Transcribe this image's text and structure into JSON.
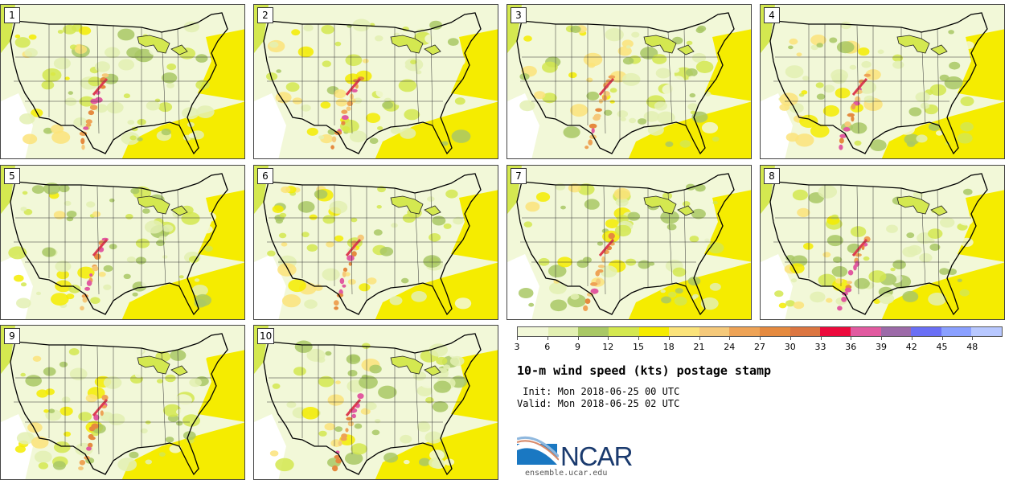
{
  "product": {
    "title": "10-m wind speed (kts) postage stamp",
    "init_line": " Init: Mon 2018-06-25 00 UTC",
    "valid_line": "Valid: Mon 2018-06-25 02 UTC"
  },
  "panels": [
    {
      "label": "1"
    },
    {
      "label": "2"
    },
    {
      "label": "3"
    },
    {
      "label": "4"
    },
    {
      "label": "5"
    },
    {
      "label": "6"
    },
    {
      "label": "7"
    },
    {
      "label": "8"
    },
    {
      "label": "9"
    },
    {
      "label": "10"
    }
  ],
  "colorbar": {
    "ticks": [
      "3",
      "6",
      "9",
      "12",
      "15",
      "18",
      "21",
      "24",
      "27",
      "30",
      "33",
      "36",
      "39",
      "42",
      "45",
      "48"
    ],
    "colors": [
      "#f2f8d8",
      "#e3f0b3",
      "#a9c865",
      "#d4e850",
      "#f5ec00",
      "#fbe37a",
      "#f5c97a",
      "#eea356",
      "#e58a3f",
      "#dc7641",
      "#ec0a3c",
      "#e15aa0",
      "#9c6aa8",
      "#6a6ff5",
      "#8aa0ff",
      "#b8c8ff"
    ]
  },
  "branding": {
    "logo_text": "NCAR",
    "url": "ensemble.ucar.edu"
  }
}
